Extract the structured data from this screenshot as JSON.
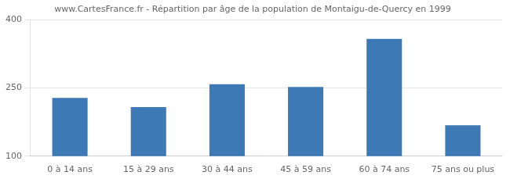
{
  "chart_data": {
    "type": "bar",
    "title": "www.CartesFrance.fr - Répartition par âge de la population de Montaigu-de-Quercy en 1999",
    "categories": [
      "0 à 14 ans",
      "15 à 29 ans",
      "30 à 44 ans",
      "45 à 59 ans",
      "60 à 74 ans",
      "75 ans ou plus"
    ],
    "values": [
      228,
      208,
      258,
      252,
      358,
      168
    ],
    "color": "#3d7ab5",
    "ylim": [
      100,
      400
    ],
    "yticks": [
      100,
      250,
      400
    ],
    "grid": true
  }
}
